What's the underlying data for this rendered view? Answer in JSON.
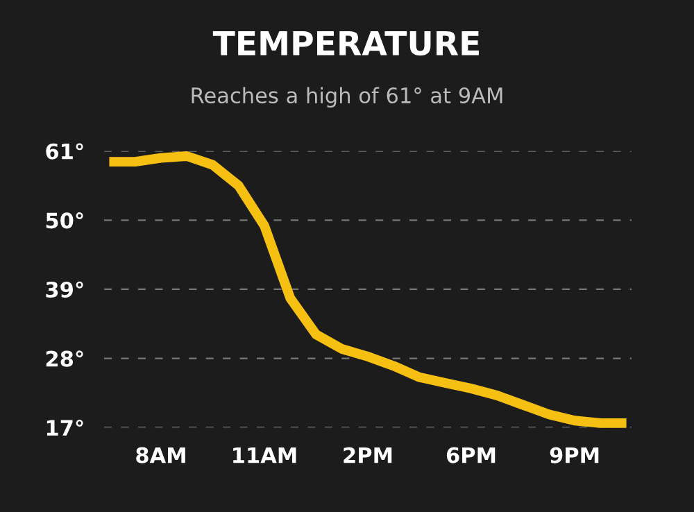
{
  "chart_data": {
    "type": "line",
    "title": "TEMPERATURE",
    "subtitle": "Reaches a high of 61° at 9AM",
    "categories": [
      null,
      null,
      "8AM",
      null,
      null,
      null,
      "11AM",
      null,
      null,
      null,
      "2PM",
      null,
      null,
      null,
      "6PM",
      null,
      null,
      null,
      "9PM",
      null,
      null
    ],
    "series": [
      {
        "color": "#f5c012",
        "values": [
          59.3,
          59.3,
          59.9,
          60.2,
          58.8,
          55.5,
          49.1,
          37.6,
          31.8,
          29.5,
          28.3,
          26.8,
          25.0,
          24.1,
          23.2,
          22.1,
          20.6,
          19.1,
          18.1,
          17.7,
          17.7
        ]
      }
    ],
    "ylim": [
      17,
      61
    ],
    "yticks": [
      {
        "value": 17,
        "label": "17°"
      },
      {
        "value": 28,
        "label": "28°"
      },
      {
        "value": 39,
        "label": "39°"
      },
      {
        "value": 50,
        "label": "50°"
      },
      {
        "value": 61,
        "label": "61°"
      }
    ],
    "grid": "y",
    "line_style": "solid",
    "marker": "none",
    "legend": false
  }
}
